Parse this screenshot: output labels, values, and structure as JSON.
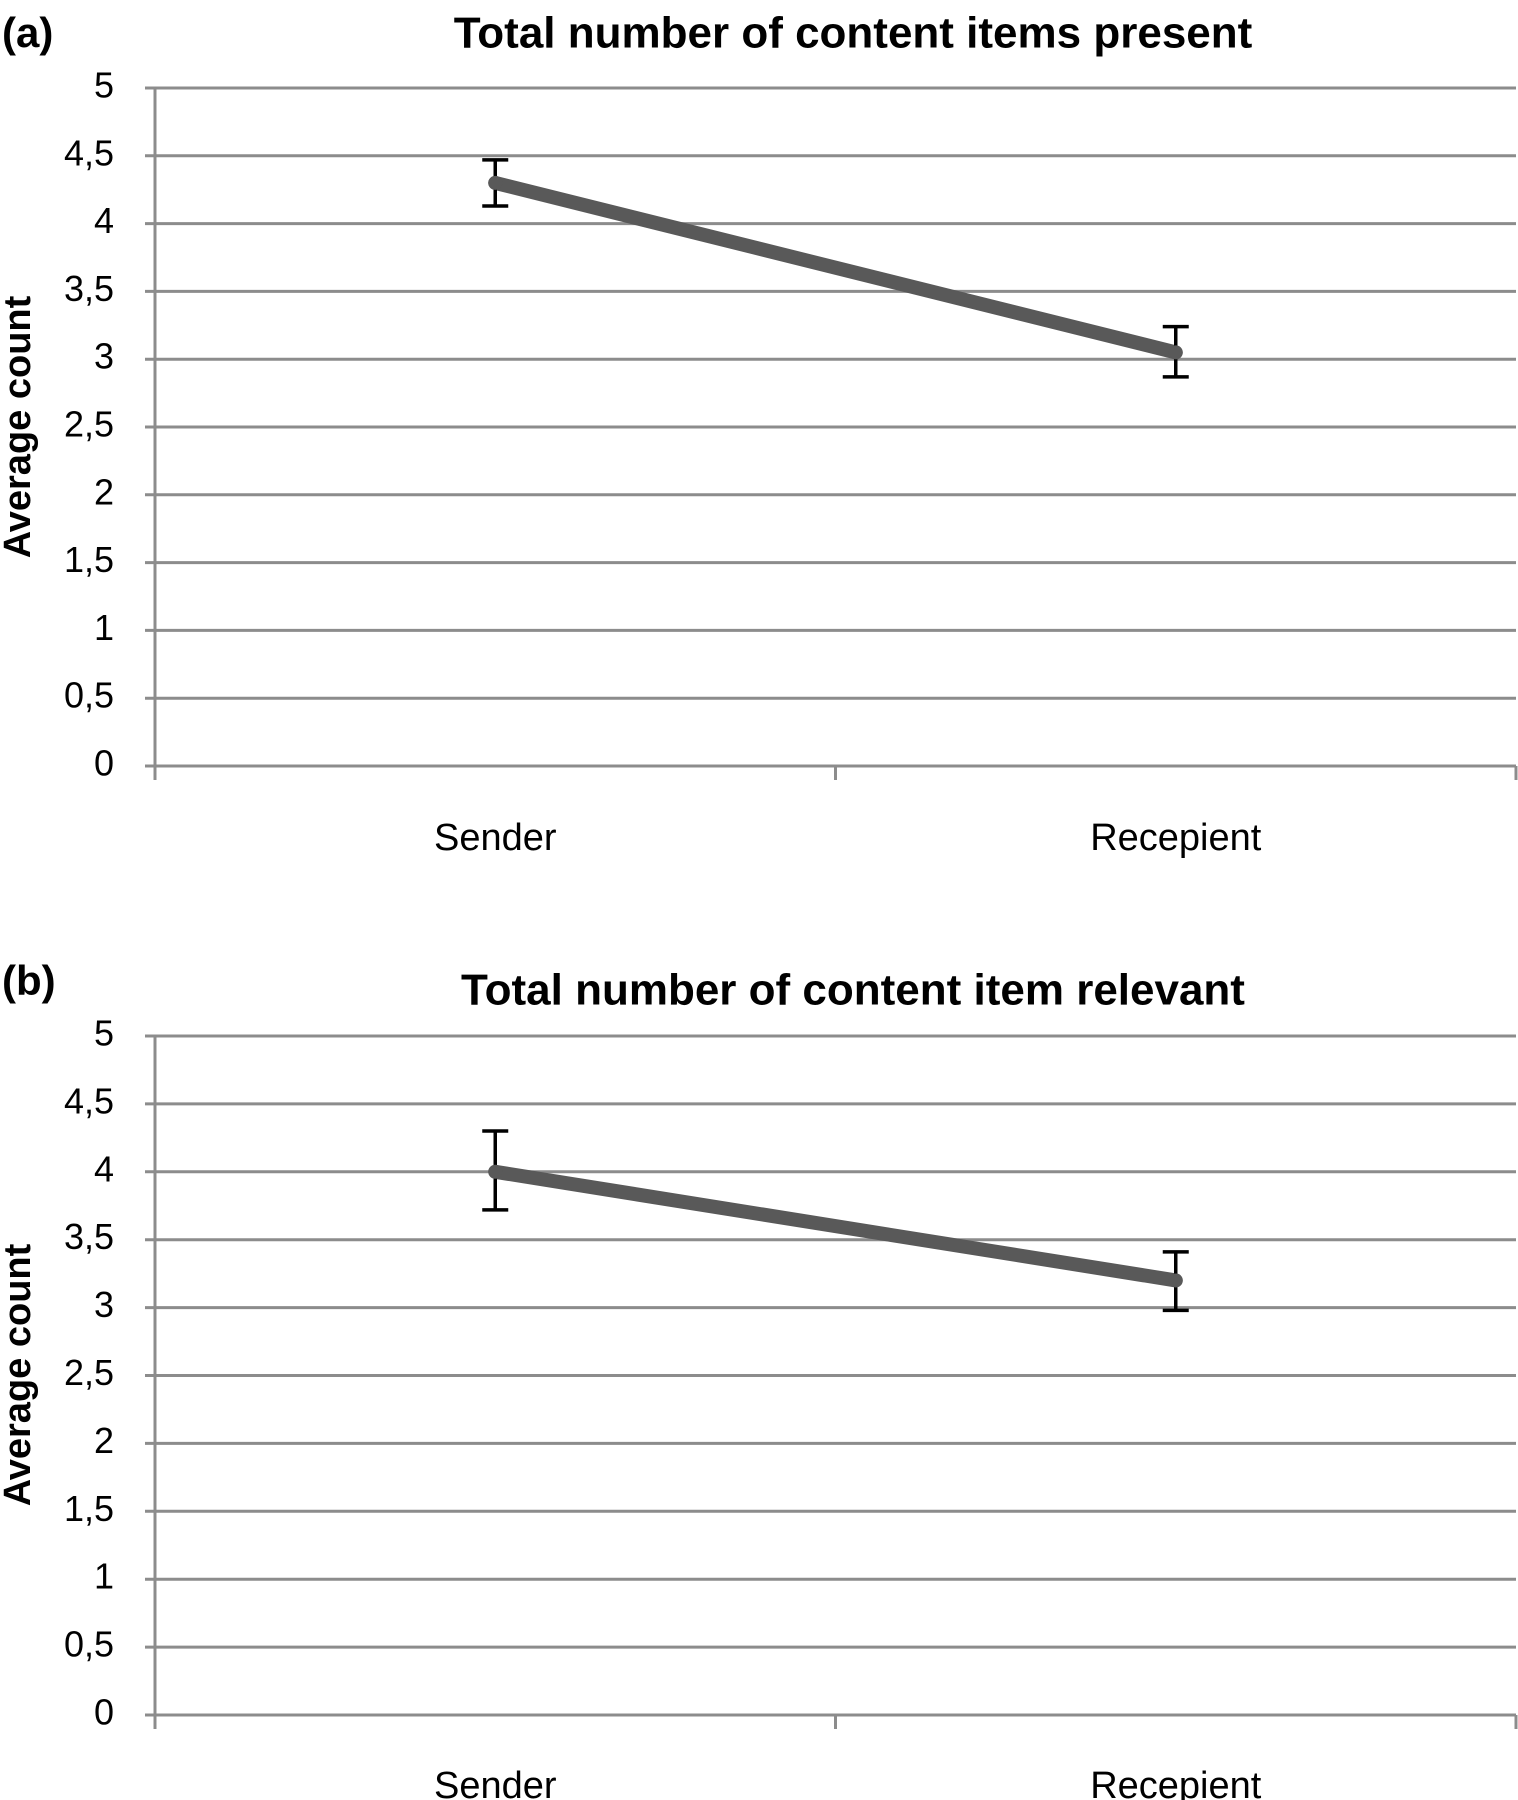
{
  "chart_data": [
    {
      "panel_label": "(a)",
      "type": "line",
      "title": "Total number of content items present",
      "ylabel": "Average count",
      "xlabel": "",
      "categories": [
        "Sender",
        "Recepient"
      ],
      "yticks": [
        "0",
        "0,5",
        "1",
        "1,5",
        "2",
        "2,5",
        "3",
        "3,5",
        "4",
        "4,5",
        "5"
      ],
      "ylim": [
        0,
        5
      ],
      "grid": true,
      "series": [
        {
          "values": [
            4.3,
            3.05
          ],
          "error_low": [
            4.13,
            2.87
          ],
          "error_high": [
            4.47,
            3.24
          ],
          "color": "#595959"
        }
      ]
    },
    {
      "panel_label": "(b)",
      "type": "line",
      "title": "Total number of content item relevant",
      "ylabel": "Average count",
      "xlabel": "",
      "categories": [
        "Sender",
        "Recepient"
      ],
      "yticks": [
        "0",
        "0,5",
        "1",
        "1,5",
        "2",
        "2,5",
        "3",
        "3,5",
        "4",
        "4,5",
        "5"
      ],
      "ylim": [
        0,
        5
      ],
      "grid": true,
      "series": [
        {
          "values": [
            4.0,
            3.2
          ],
          "error_low": [
            3.72,
            2.98
          ],
          "error_high": [
            4.3,
            3.41
          ],
          "color": "#595959"
        }
      ]
    }
  ]
}
